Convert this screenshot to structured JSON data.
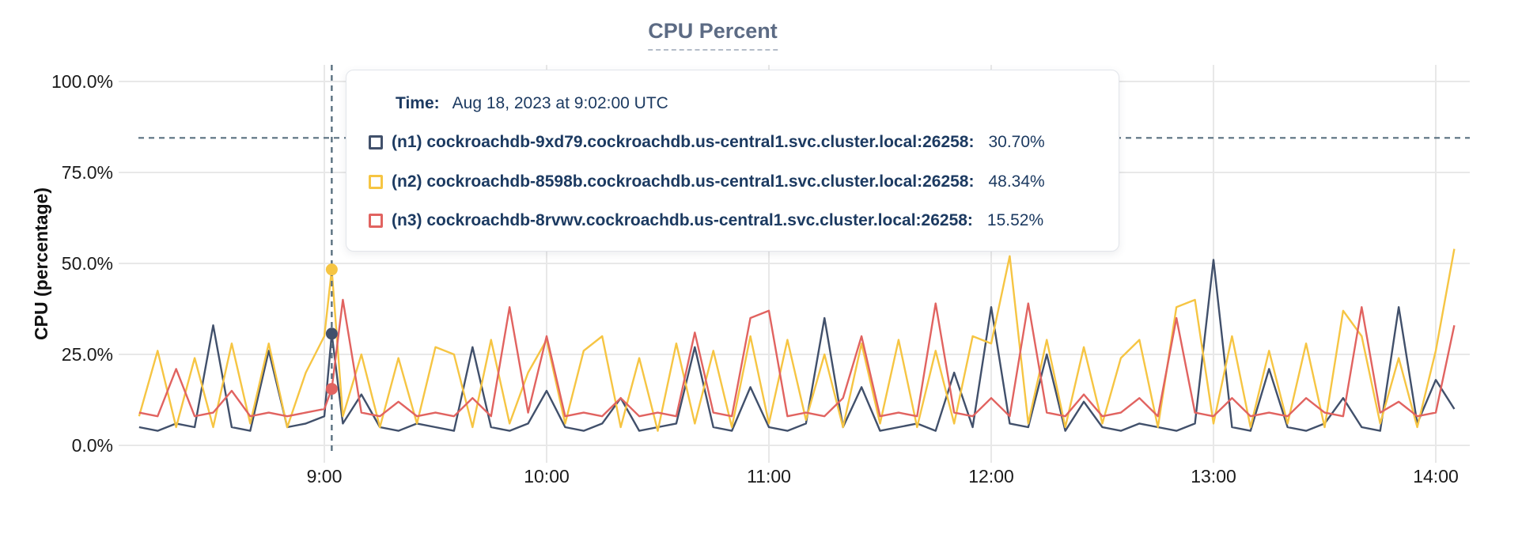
{
  "title": "CPU Percent",
  "y_axis": {
    "label": "CPU (percentage)",
    "tick_labels": [
      "100.0%",
      "75.0%",
      "50.0%",
      "25.0%",
      "0.0%"
    ],
    "tick_values": [
      100,
      75,
      50,
      25,
      0
    ]
  },
  "x_axis": {
    "tick_labels": [
      "9:00",
      "10:00",
      "11:00",
      "12:00",
      "13:00",
      "14:00"
    ],
    "tick_minutes": [
      540,
      600,
      660,
      720,
      780,
      840
    ]
  },
  "tooltip": {
    "time_label": "Time:",
    "time_value": "Aug 18, 2023 at 9:02:00 UTC",
    "rows": [
      {
        "name": "(n1) cockroachdb-9xd79.cockroachdb.us-central1.svc.cluster.local:26258:",
        "value": "30.70%",
        "color": "#41506b"
      },
      {
        "name": "(n2) cockroachdb-8598b.cockroachdb.us-central1.svc.cluster.local:26258:",
        "value": "48.34%",
        "color": "#f6c543"
      },
      {
        "name": "(n3) cockroachdb-8rvwv.cockroachdb.us-central1.svc.cluster.local:26258:",
        "value": "15.52%",
        "color": "#e16360"
      }
    ]
  },
  "chart_data": {
    "type": "line",
    "title": "CPU Percent",
    "ylabel": "CPU (percentage)",
    "ylim": [
      0,
      100
    ],
    "grid": "on",
    "threshold_percent": 84.5,
    "hover": {
      "time": "Aug 18, 2023 at 9:02:00 UTC",
      "x_minute": 542,
      "values": [
        30.7,
        48.34,
        15.52
      ]
    },
    "x_minutes": [
      490,
      495,
      500,
      505,
      510,
      515,
      520,
      525,
      530,
      535,
      540,
      542,
      545,
      550,
      555,
      560,
      565,
      570,
      575,
      580,
      585,
      590,
      595,
      600,
      605,
      610,
      615,
      620,
      625,
      630,
      635,
      640,
      645,
      650,
      655,
      660,
      665,
      670,
      675,
      680,
      685,
      690,
      695,
      700,
      705,
      710,
      715,
      720,
      725,
      730,
      735,
      740,
      745,
      750,
      755,
      760,
      765,
      770,
      775,
      780,
      785,
      790,
      795,
      800,
      805,
      810,
      815,
      820,
      825,
      830,
      835,
      840,
      845
    ],
    "series": [
      {
        "name": "(n1) cockroachdb-9xd79.cockroachdb.us-central1.svc.cluster.local:26258",
        "color": "#41506b",
        "values": [
          5,
          4,
          6,
          5,
          33,
          5,
          4,
          26,
          5,
          6,
          8,
          30.7,
          6,
          14,
          5,
          4,
          6,
          5,
          4,
          27,
          5,
          4,
          6,
          15,
          5,
          4,
          6,
          13,
          4,
          5,
          6,
          27,
          5,
          4,
          16,
          5,
          4,
          6,
          35,
          5,
          16,
          4,
          5,
          6,
          4,
          20,
          5,
          38,
          6,
          5,
          25,
          4,
          12,
          5,
          4,
          6,
          5,
          4,
          6,
          51,
          5,
          4,
          21,
          5,
          4,
          6,
          13,
          5,
          4,
          38,
          6,
          18,
          10
        ]
      },
      {
        "name": "(n2) cockroachdb-8598b.cockroachdb.us-central1.svc.cluster.local:26258",
        "color": "#f6c543",
        "values": [
          8,
          26,
          5,
          24,
          5,
          28,
          6,
          28,
          5,
          20,
          30,
          48.34,
          8,
          25,
          5,
          24,
          6,
          27,
          25,
          5,
          29,
          6,
          20,
          29,
          6,
          26,
          30,
          5,
          24,
          4,
          28,
          6,
          26,
          5,
          30,
          6,
          29,
          7,
          25,
          5,
          28,
          6,
          29,
          5,
          26,
          6,
          30,
          28,
          52,
          6,
          29,
          5,
          27,
          6,
          24,
          29,
          5,
          38,
          40,
          6,
          30,
          5,
          26,
          6,
          28,
          5,
          37,
          30,
          6,
          24,
          5,
          26,
          54
        ]
      },
      {
        "name": "(n3) cockroachdb-8rvwv.cockroachdb.us-central1.svc.cluster.local:26258",
        "color": "#e16360",
        "values": [
          9,
          8,
          21,
          8,
          9,
          15,
          8,
          9,
          8,
          9,
          10,
          15.52,
          40,
          9,
          8,
          12,
          8,
          9,
          8,
          13,
          8,
          38,
          9,
          30,
          8,
          9,
          8,
          13,
          8,
          9,
          8,
          31,
          9,
          8,
          35,
          37,
          8,
          9,
          8,
          13,
          30,
          8,
          9,
          8,
          39,
          9,
          8,
          13,
          8,
          39,
          9,
          8,
          14,
          8,
          9,
          13,
          8,
          35,
          9,
          8,
          13,
          8,
          9,
          8,
          13,
          9,
          8,
          38,
          9,
          12,
          8,
          9,
          33
        ]
      }
    ],
    "colors": {
      "grid": "#e8e8e8",
      "dashed_guides": "#5a7080",
      "axis_text": "#1a1a1a",
      "title_text": "#5c6b84",
      "tooltip_text": "#1c3a61"
    }
  }
}
